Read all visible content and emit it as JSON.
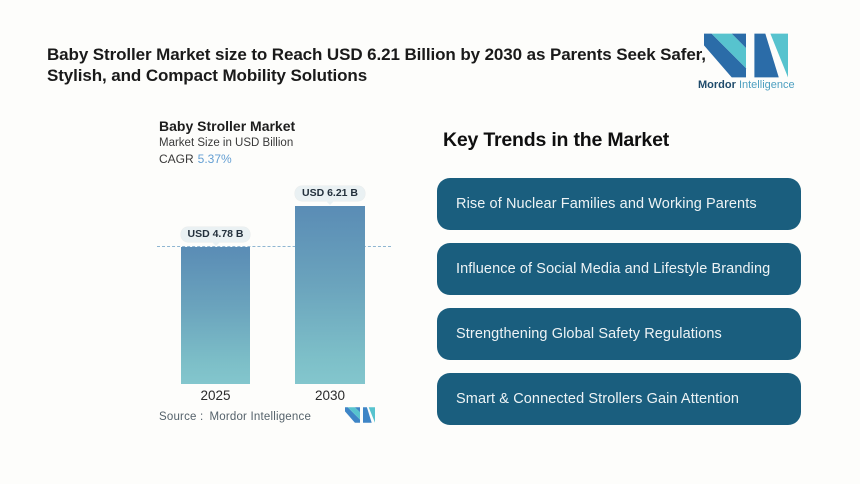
{
  "header": {
    "title_line1": "Baby Stroller Market size to Reach USD 6.21 Billion by 2030 as Parents Seek Safer,",
    "title_line2": "Stylish, and Compact Mobility Solutions",
    "brand": {
      "mordor": "Mordor",
      "intelligence": "Intelligence"
    }
  },
  "chart": {
    "title": "Baby Stroller Market",
    "subtitle": "Market Size in USD Billion",
    "cagr_label": "CAGR",
    "cagr_value": "5.37%",
    "source_label": "Source :",
    "source_value": "Mordor Intelligence"
  },
  "chart_data": {
    "type": "bar",
    "title": "Baby Stroller Market",
    "ylabel": "Market Size in USD Billion",
    "categories": [
      "2025",
      "2030"
    ],
    "values": [
      4.78,
      6.21
    ],
    "value_labels": [
      "USD 4.78 B",
      "USD 6.21 B"
    ],
    "unit": "USD Billion",
    "cagr_pct": 5.37,
    "ylim": [
      0,
      7.1
    ],
    "grid": false,
    "legend": "none",
    "annotations": [
      "horizontal dashed reference line at 2025 value (4.78)"
    ],
    "source": "Mordor Intelligence"
  },
  "trends": {
    "heading": "Key Trends in the Market",
    "items": [
      "Rise of Nuclear Families and Working Parents",
      "Influence of Social Media and Lifestyle Branding",
      "Strengthening Global Safety Regulations",
      "Smart & Connected Strollers Gain Attention"
    ]
  },
  "colors": {
    "button_teal": "#1a5e7e",
    "bar_gradient_top": "#5a8cb5",
    "bar_gradient_bottom": "#83c6cd",
    "callout_bg": "#eaf1f3",
    "dashed_line": "#8fb6d2",
    "cagr_blue": "#649fd3",
    "logo_dark_blue": "#2b6ca8",
    "logo_teal": "#57c3ce",
    "brand_text_dark": "#1f4b6b",
    "brand_text_light": "#4d9fc0"
  }
}
